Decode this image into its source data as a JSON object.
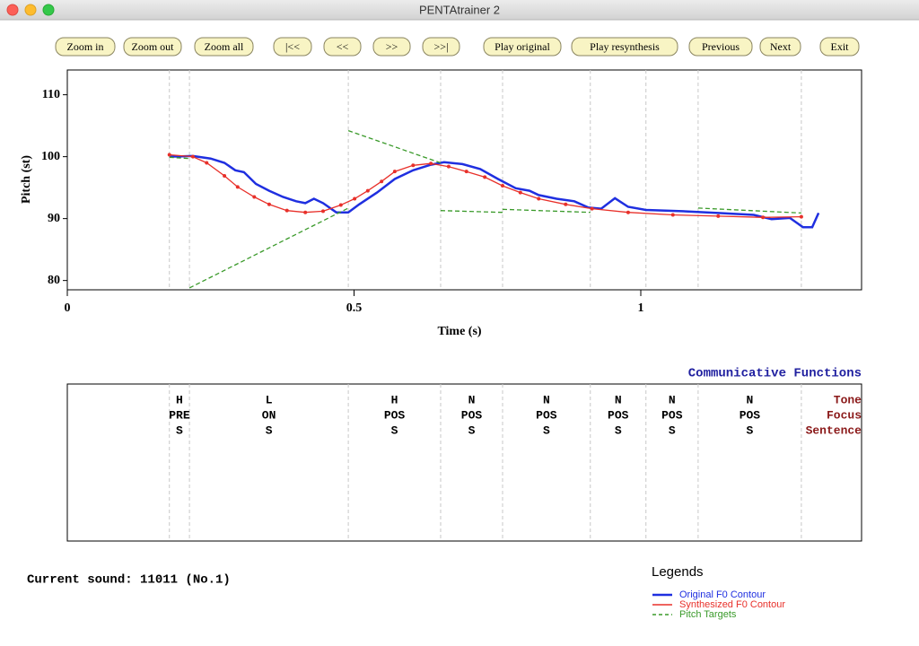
{
  "window": {
    "title": "PENTAtrainer 2"
  },
  "toolbar": {
    "buttons": [
      "Zoom in",
      "Zoom out",
      "Zoom all",
      "|<<",
      "<<",
      ">>",
      ">>|",
      "Play original",
      "Play resynthesis",
      "Previous",
      "Next",
      "Exit"
    ]
  },
  "chart_data": {
    "type": "line",
    "xlabel": "Time (s)",
    "ylabel": "Pitch (st)",
    "xlim": [
      0,
      1.385
    ],
    "ylim": [
      78.5,
      114
    ],
    "xticks": [
      0,
      0.5,
      1
    ],
    "yticks": [
      80,
      90,
      100,
      110
    ],
    "boundaries": [
      0.178,
      0.213,
      0.49,
      0.651,
      0.759,
      0.912,
      1.009,
      1.1,
      1.28
    ],
    "series": [
      {
        "name": "Original F0 Contour",
        "color": "#1f2fe0",
        "x": [
          0.178,
          0.219,
          0.25,
          0.274,
          0.293,
          0.308,
          0.329,
          0.352,
          0.376,
          0.399,
          0.415,
          0.43,
          0.446,
          0.469,
          0.49,
          0.509,
          0.54,
          0.571,
          0.603,
          0.634,
          0.657,
          0.689,
          0.72,
          0.751,
          0.782,
          0.806,
          0.822,
          0.853,
          0.884,
          0.908,
          0.931,
          0.955,
          0.978,
          1.009,
          1.072,
          1.135,
          1.197,
          1.228,
          1.26,
          1.283,
          1.299,
          1.31
        ],
        "values": [
          100.0,
          100.1,
          99.7,
          99.0,
          97.8,
          97.5,
          95.6,
          94.5,
          93.5,
          92.8,
          92.5,
          93.2,
          92.5,
          91.0,
          91.0,
          92.3,
          94.2,
          96.4,
          97.8,
          98.7,
          99.1,
          98.8,
          98.0,
          96.4,
          94.9,
          94.5,
          93.8,
          93.2,
          92.8,
          91.8,
          91.6,
          93.3,
          91.9,
          91.4,
          91.2,
          90.9,
          90.6,
          89.9,
          90.1,
          88.6,
          88.6,
          90.9
        ]
      },
      {
        "name": "Synthesized F0 Contour",
        "color": "#e8302a",
        "x": [
          0.178,
          0.219,
          0.243,
          0.274,
          0.297,
          0.326,
          0.352,
          0.383,
          0.415,
          0.446,
          0.477,
          0.501,
          0.524,
          0.548,
          0.571,
          0.603,
          0.634,
          0.665,
          0.696,
          0.728,
          0.759,
          0.79,
          0.822,
          0.869,
          0.915,
          0.978,
          1.056,
          1.135,
          1.213,
          1.28
        ],
        "values": [
          100.3,
          100.0,
          99.0,
          96.9,
          95.1,
          93.5,
          92.3,
          91.3,
          91.0,
          91.2,
          92.2,
          93.2,
          94.5,
          96.0,
          97.6,
          98.6,
          98.9,
          98.4,
          97.6,
          96.7,
          95.3,
          94.2,
          93.2,
          92.3,
          91.6,
          91.0,
          90.6,
          90.4,
          90.2,
          90.3
        ]
      },
      {
        "name": "Pitch Targets",
        "color": "#3a9a2a",
        "x": [
          0.178,
          0.213,
          null,
          0.213,
          0.49,
          null,
          0.49,
          0.651,
          null,
          0.651,
          0.759,
          null,
          0.759,
          0.912,
          null,
          1.1,
          1.28
        ],
        "values": [
          99.9,
          99.7,
          null,
          78.8,
          91.7,
          null,
          104.2,
          99.0,
          null,
          91.3,
          91.0,
          null,
          91.5,
          91.0,
          null,
          91.7,
          90.9
        ]
      }
    ]
  },
  "functions": {
    "title": "Communicative Functions",
    "tiers": [
      "Tone",
      "Focus",
      "Sentence"
    ],
    "units": [
      [
        "H",
        "PRE",
        "S"
      ],
      [
        "L",
        "ON",
        "S"
      ],
      [
        "H",
        "POS",
        "S"
      ],
      [
        "N",
        "POS",
        "S"
      ],
      [
        "N",
        "POS",
        "S"
      ],
      [
        "N",
        "POS",
        "S"
      ],
      [
        "N",
        "POS",
        "S"
      ],
      [
        "N",
        "POS",
        "S"
      ]
    ]
  },
  "status": {
    "current_sound": "Current sound: 11011 (No.1)"
  },
  "legend": {
    "title": "Legends"
  }
}
